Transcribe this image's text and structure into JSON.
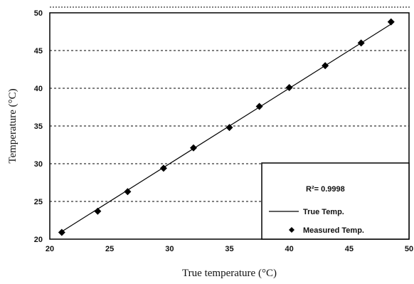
{
  "chart_data": {
    "type": "scatter",
    "title": "",
    "xlabel": "True temperature (°C)",
    "ylabel": "Temperature (°C)",
    "xlim": [
      20,
      50
    ],
    "ylim": [
      20,
      50
    ],
    "x_ticks": [
      "20",
      "25",
      "30",
      "35",
      "40",
      "45",
      "50"
    ],
    "y_ticks": [
      "20",
      "25",
      "30",
      "35",
      "40",
      "45",
      "50"
    ],
    "grid": "horizontal dashed",
    "legend_position": "bottom-right",
    "annotation": "R²= 0.9998",
    "series": [
      {
        "name": "True Temp.",
        "kind": "line",
        "color": "#000000",
        "x": [
          21,
          48.5
        ],
        "y": [
          21,
          48.5
        ]
      },
      {
        "name": "Measured Temp.",
        "kind": "scatter",
        "marker": "diamond",
        "color": "#000000",
        "x": [
          21.0,
          24.0,
          26.5,
          29.5,
          32.0,
          35.0,
          37.5,
          40.0,
          43.0,
          46.0,
          48.5
        ],
        "y": [
          20.9,
          23.7,
          26.3,
          29.4,
          32.1,
          34.8,
          37.6,
          40.1,
          43.0,
          46.0,
          48.8
        ]
      }
    ]
  }
}
